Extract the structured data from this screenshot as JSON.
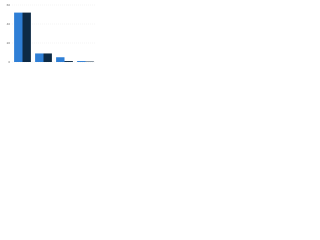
{
  "chart_data": {
    "type": "bar",
    "categories": [
      null,
      null,
      null,
      null
    ],
    "series": [
      {
        "color": "#2f7fd6",
        "values": [
          52,
          9,
          5,
          1
        ]
      },
      {
        "color": "#0d2a45",
        "values": [
          52,
          9,
          1,
          0.5
        ]
      }
    ],
    "ylim": [
      0,
      60
    ],
    "yticks": [
      0,
      20,
      40,
      60
    ],
    "grid": true
  }
}
